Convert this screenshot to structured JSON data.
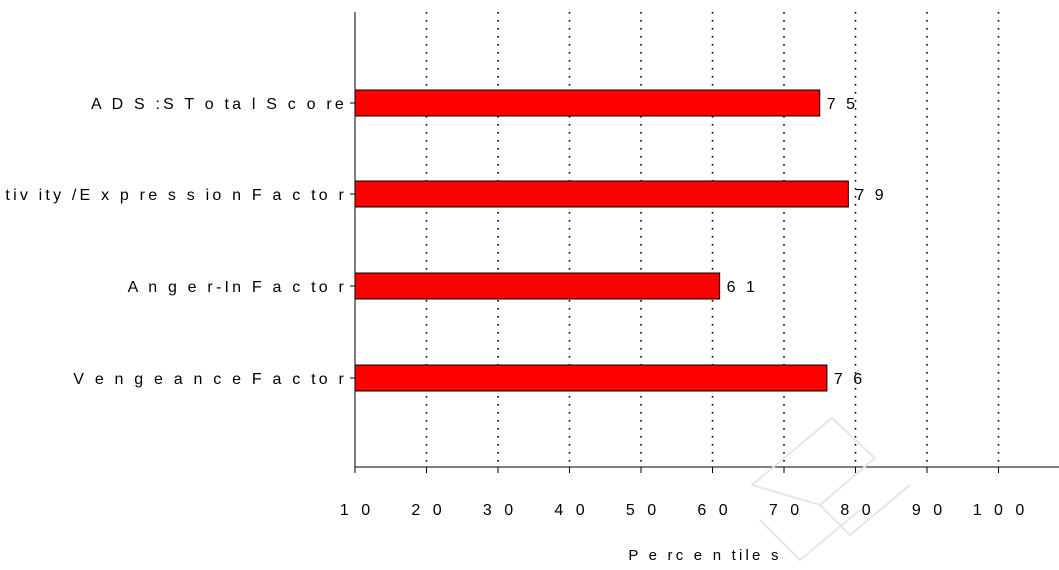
{
  "chart_data": {
    "type": "bar",
    "orientation": "horizontal",
    "categories": [
      "ADS:S Total Score",
      "Reactivity/Expression Factor",
      "Anger-In Factor",
      "Vengeance Factor"
    ],
    "display_labels": [
      "A D S :S  T o ta l S c o re",
      "R e a c tiv ity /E x p re s s io n  F a c to r",
      "A n g e r-In  F a c to r",
      "V e n g e a n c e  F a c to r"
    ],
    "values": [
      75,
      79,
      61,
      76
    ],
    "value_labels": [
      "7 5",
      "7 9",
      "6 1",
      "7 6"
    ],
    "xlim": [
      10,
      110
    ],
    "xticks": [
      10,
      20,
      30,
      40,
      50,
      60,
      70,
      80,
      90,
      100
    ],
    "xtick_labels": [
      "1 0",
      "2 0",
      "3 0",
      "4 0",
      "5 0",
      "6 0",
      "7 0",
      "8 0",
      "9 0",
      "1 0 0"
    ],
    "xlabel": "P e rc e n tile s",
    "grid": "vertical-dotted",
    "bar_color": "#ff0000",
    "watermark": "E"
  }
}
